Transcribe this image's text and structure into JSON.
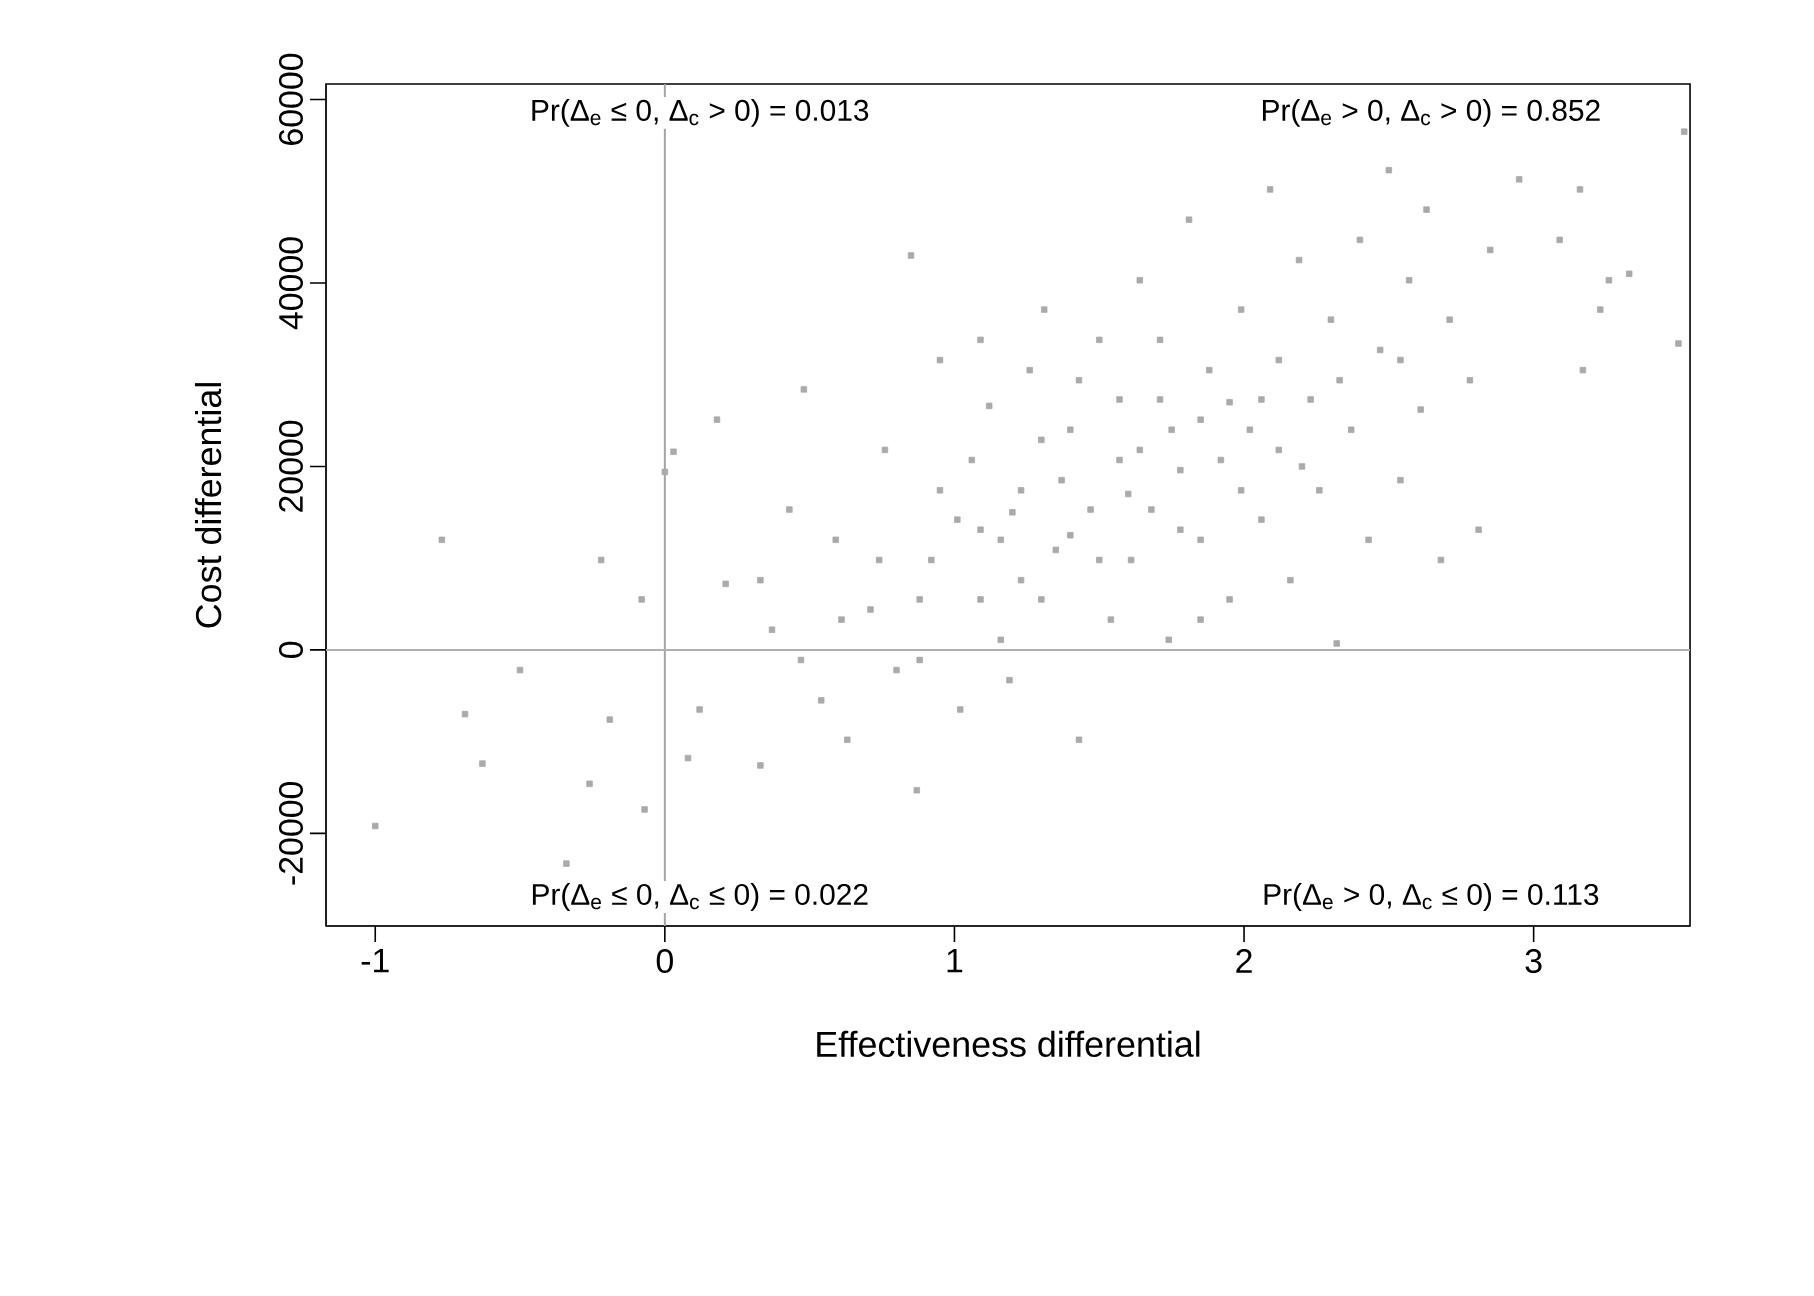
{
  "chart_data": {
    "type": "scatter",
    "xlabel": "Effectiveness differential",
    "ylabel": "Cost differential",
    "xlim": [
      -1.17,
      3.54
    ],
    "ylim": [
      -30100,
      61700
    ],
    "xticks": [
      -1,
      0,
      1,
      2,
      3
    ],
    "yticks": [
      -20000,
      0,
      20000,
      40000,
      60000
    ],
    "grid": false,
    "marker": "square",
    "ref_lines": [
      {
        "axis": "x",
        "value": 0,
        "color": "#a4a4a4"
      },
      {
        "axis": "y",
        "value": 0,
        "color": "#b0b0b0"
      }
    ],
    "annotations": [
      "Pr(Δ$_{e}$ ≤ 0, Δ$_{c}$ > 0) = 0.013",
      "Pr(Δ$_{e}$ > 0, Δ$_{c}$ > 0) = 0.852",
      "Pr(Δ$_{e}$ ≤ 0, Δ$_{c}$ ≤ 0) = 0.022",
      "Pr(Δ$_{e}$ > 0, Δ$_{c}$ ≤ 0) = 0.113"
    ],
    "series": [
      {
        "color": "#aaaaaa",
        "x": [
          -1.0,
          -0.77,
          -0.69,
          -0.63,
          -0.5,
          -0.34,
          -0.26,
          -0.22,
          -0.19,
          -0.08,
          -0.07,
          0.0,
          0.03,
          0.08,
          0.12,
          0.18,
          0.21,
          0.33,
          0.37,
          0.43,
          0.48,
          0.54,
          0.59,
          0.63,
          0.71,
          0.76,
          0.8,
          0.85,
          0.87,
          0.92,
          0.95,
          1.01,
          1.02,
          1.06,
          1.09,
          1.12,
          1.16,
          1.19,
          1.23,
          1.26,
          1.3,
          1.31,
          1.35,
          1.4,
          1.43,
          1.47,
          1.5,
          1.54,
          1.57,
          1.61,
          1.64,
          1.68,
          1.71,
          1.74,
          1.78,
          1.81,
          1.85,
          1.88,
          1.92,
          1.95,
          1.99,
          2.02,
          2.06,
          2.09,
          2.12,
          2.16,
          2.19,
          2.23,
          2.26,
          2.3,
          2.32,
          2.37,
          2.4,
          2.43,
          2.47,
          2.5,
          2.54,
          2.57,
          2.61,
          2.63,
          2.68,
          2.71,
          2.78,
          2.81,
          2.85,
          2.95,
          3.09,
          3.16,
          3.23,
          3.26,
          3.33,
          3.17,
          3.52,
          3.5,
          0.88,
          0.95,
          1.09,
          1.23,
          1.37,
          1.5,
          1.64,
          1.78,
          1.85,
          1.99,
          2.12,
          1.57,
          1.3,
          0.74,
          0.61,
          0.47,
          0.33,
          1.16,
          0.88,
          1.85,
          2.06,
          1.71,
          1.43,
          1.09,
          2.33,
          2.54,
          1.2,
          1.4,
          1.6,
          1.75,
          1.95,
          2.2
        ],
        "values": [
          -19200,
          12000,
          -7000,
          -12400,
          -2200,
          -23300,
          -14600,
          9800,
          -7600,
          5500,
          -17400,
          19400,
          21600,
          -11800,
          -6500,
          25100,
          7200,
          -12600,
          2200,
          15300,
          28400,
          -5500,
          12000,
          -9800,
          4400,
          21800,
          -2200,
          43000,
          -15300,
          9800,
          31600,
          14200,
          -6500,
          20700,
          5500,
          26600,
          12000,
          -3300,
          17400,
          30500,
          5500,
          37100,
          10900,
          24000,
          -9800,
          15300,
          33800,
          3300,
          20700,
          9800,
          40300,
          15300,
          27300,
          1100,
          19600,
          46900,
          12000,
          30500,
          20700,
          5500,
          37100,
          24000,
          14200,
          50200,
          31600,
          7600,
          42500,
          27300,
          17400,
          36000,
          700,
          24000,
          44700,
          12000,
          32700,
          52300,
          18500,
          40300,
          26200,
          48000,
          9800,
          36000,
          29400,
          13100,
          43600,
          51300,
          44700,
          50200,
          37100,
          40300,
          41000,
          30500,
          56500,
          33400,
          5500,
          17400,
          13100,
          7600,
          18500,
          9800,
          21800,
          13100,
          25100,
          17400,
          21800,
          27300,
          22900,
          9800,
          3300,
          -1100,
          7600,
          1100,
          -1100,
          3300,
          27300,
          33800,
          29400,
          33800,
          29400,
          31600,
          15000,
          12500,
          17000,
          24000,
          27000,
          20000
        ]
      }
    ]
  }
}
